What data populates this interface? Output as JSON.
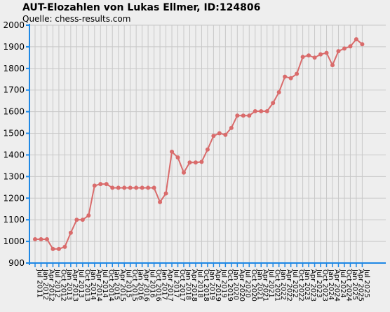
{
  "title": "AUT-Elozahlen von Lukas Ellmer, ID:124806",
  "subtitle": "Quelle: chess-results.com",
  "colors": {
    "line": "#d96b6b",
    "axis": "#1e88e5",
    "grid": "#c8c8c8",
    "background": "#eeeeee"
  },
  "chart_data": {
    "type": "line",
    "title": "AUT-Elozahlen von Lukas Ellmer, ID:124806",
    "xlabel": "",
    "ylabel": "",
    "ylim": [
      900,
      2000
    ],
    "yticks": [
      900,
      1000,
      1100,
      1200,
      1300,
      1400,
      1500,
      1600,
      1700,
      1800,
      1900,
      2000
    ],
    "grid": true,
    "x_tick_labels": [
      "Jul 2011",
      "Jan 2012",
      "Apr 2012",
      "Jul 2012",
      "Oct 2012",
      "Jan 2013",
      "Apr 2013",
      "Jul 2013",
      "Oct 2013",
      "Jan 2014",
      "Apr 2014",
      "Jul 2014",
      "Oct 2014",
      "Jan 2015",
      "Apr 2015",
      "Jul 2015",
      "Oct 2015",
      "Jan 2016",
      "Apr 2016",
      "Jul 2016",
      "Oct 2016",
      "Jan 2017",
      "Apr 2017",
      "Jul 2017",
      "Oct 2017",
      "Jan 2018",
      "Apr 2018",
      "Jul 2018",
      "Oct 2018",
      "Jan 2019",
      "Apr 2019",
      "Jul 2019",
      "Oct 2019",
      "Jan 2020",
      "Apr 2020",
      "Jul 2020",
      "Oct 2020",
      "Jan 2021",
      "Apr 2021",
      "Jul 2021",
      "Oct 2021",
      "Jan 2022",
      "Apr 2022",
      "Jul 2022",
      "Oct 2022",
      "Jan 2023",
      "Apr 2023",
      "Jul 2023",
      "Oct 2023",
      "Jan 2024",
      "Apr 2024",
      "Jul 2024",
      "Oct 2024",
      "Jan 2025",
      "Apr 2025",
      "Jul 2025"
    ],
    "series": [
      {
        "values": [
          1010,
          1010,
          1010,
          965,
          965,
          975,
          1040,
          1100,
          1100,
          1120,
          1258,
          1265,
          1265,
          1248,
          1248,
          1248,
          1248,
          1248,
          1248,
          1248,
          1248,
          1182,
          1222,
          1415,
          1388,
          1318,
          1365,
          1365,
          1368,
          1425,
          1488,
          1500,
          1493,
          1525,
          1582,
          1582,
          1582,
          1602,
          1602,
          1602,
          1640,
          1690,
          1762,
          1755,
          1775,
          1853,
          1860,
          1850,
          1865,
          1872,
          1815,
          1880,
          1892,
          1902,
          1935,
          1912
        ]
      }
    ]
  }
}
